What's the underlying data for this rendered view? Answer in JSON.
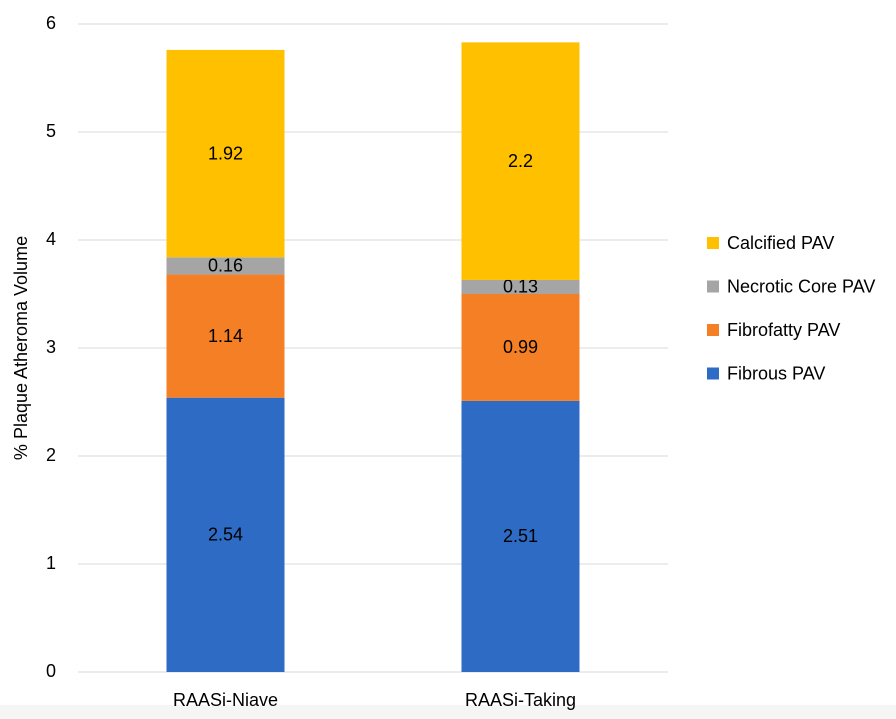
{
  "chart_data": {
    "type": "stacked_bar",
    "y_label": "% Plaque Atheroma Volume",
    "categories": [
      "RAASi-Niave",
      "RAASi-Taking"
    ],
    "series": [
      {
        "name": "Fibrous PAV",
        "color": "#2e6bc4",
        "values": [
          2.54,
          2.51
        ]
      },
      {
        "name": "Fibrofatty PAV",
        "color": "#f47f25",
        "values": [
          1.14,
          0.99
        ]
      },
      {
        "name": "Necrotic Core PAV",
        "color": "#a5a5a5",
        "values": [
          0.16,
          0.13
        ]
      },
      {
        "name": "Calcified PAV",
        "color": "#ffc000",
        "values": [
          1.92,
          2.2
        ]
      }
    ],
    "ylim": [
      0,
      6
    ],
    "yticks": [
      0,
      1,
      2,
      3,
      4,
      5,
      6
    ],
    "grid": true,
    "legend": "right"
  }
}
